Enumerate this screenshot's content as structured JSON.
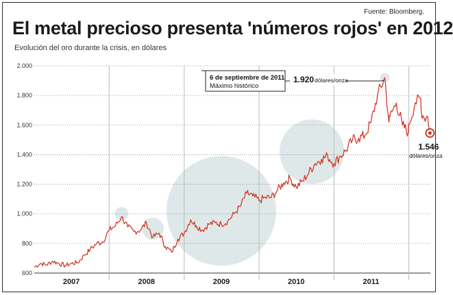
{
  "source": "Fuente: Bloomberg.",
  "title": "El metal precioso presenta 'números rojos' en 2012",
  "subtitle": "Evolución del oro durante la crisis, en dólares",
  "colors": {
    "line": "#d03a2c",
    "bubble": "#dfe8e8",
    "axis": "#333333",
    "grid": "#888888",
    "accent": "#d03a2c"
  },
  "chart_data": {
    "type": "line",
    "title": "El metal precioso presenta 'números rojos' en 2012",
    "subtitle": "Evolución del oro durante la crisis, en dólares",
    "xlabel": "",
    "ylabel": "",
    "x_range": [
      "2007-01-01",
      "2012-04-15"
    ],
    "ylim": [
      600,
      2000
    ],
    "y_ticks": [
      600,
      800,
      1000,
      1200,
      1400,
      1600,
      1800,
      2000
    ],
    "y_tick_labels": [
      "600",
      "800",
      "1.000",
      "1.200",
      "1.400",
      "1.600",
      "1.800",
      "2.000"
    ],
    "x_categories": [
      "2007",
      "2008",
      "2009",
      "2010",
      "2011"
    ],
    "grid": "horizontal-dotted",
    "series": [
      {
        "values": [
          [
            "2007-01-01",
            640
          ],
          [
            "2007-02-01",
            665
          ],
          [
            "2007-03-01",
            655
          ],
          [
            "2007-04-01",
            680
          ],
          [
            "2007-05-01",
            665
          ],
          [
            "2007-06-01",
            650
          ],
          [
            "2007-07-01",
            665
          ],
          [
            "2007-08-01",
            670
          ],
          [
            "2007-09-01",
            720
          ],
          [
            "2007-10-01",
            760
          ],
          [
            "2007-11-01",
            800
          ],
          [
            "2007-12-01",
            810
          ],
          [
            "2008-01-01",
            890
          ],
          [
            "2008-02-01",
            920
          ],
          [
            "2008-03-01",
            980
          ],
          [
            "2008-04-01",
            910
          ],
          [
            "2008-05-01",
            880
          ],
          [
            "2008-06-01",
            890
          ],
          [
            "2008-07-01",
            940
          ],
          [
            "2008-08-01",
            840
          ],
          [
            "2008-09-01",
            870
          ],
          [
            "2008-10-01",
            780
          ],
          [
            "2008-11-01",
            740
          ],
          [
            "2008-12-01",
            830
          ],
          [
            "2009-01-01",
            870
          ],
          [
            "2009-02-01",
            960
          ],
          [
            "2009-03-01",
            920
          ],
          [
            "2009-04-01",
            890
          ],
          [
            "2009-05-01",
            930
          ],
          [
            "2009-06-01",
            940
          ],
          [
            "2009-07-01",
            930
          ],
          [
            "2009-08-01",
            950
          ],
          [
            "2009-09-01",
            1000
          ],
          [
            "2009-10-01",
            1050
          ],
          [
            "2009-11-01",
            1140
          ],
          [
            "2009-12-01",
            1120
          ],
          [
            "2010-01-01",
            1090
          ],
          [
            "2010-02-01",
            1110
          ],
          [
            "2010-03-01",
            1110
          ],
          [
            "2010-04-01",
            1160
          ],
          [
            "2010-05-01",
            1210
          ],
          [
            "2010-06-01",
            1240
          ],
          [
            "2010-07-01",
            1180
          ],
          [
            "2010-08-01",
            1220
          ],
          [
            "2010-09-01",
            1280
          ],
          [
            "2010-10-01",
            1340
          ],
          [
            "2010-11-01",
            1370
          ],
          [
            "2010-12-01",
            1390
          ],
          [
            "2011-01-01",
            1340
          ],
          [
            "2011-02-01",
            1390
          ],
          [
            "2011-03-01",
            1430
          ],
          [
            "2011-04-01",
            1500
          ],
          [
            "2011-05-01",
            1510
          ],
          [
            "2011-06-01",
            1530
          ],
          [
            "2011-07-01",
            1620
          ],
          [
            "2011-08-01",
            1800
          ],
          [
            "2011-09-06",
            1920
          ],
          [
            "2011-09-26",
            1620
          ],
          [
            "2011-10-01",
            1660
          ],
          [
            "2011-11-01",
            1750
          ],
          [
            "2011-12-01",
            1600
          ],
          [
            "2011-12-29",
            1550
          ],
          [
            "2012-01-01",
            1600
          ],
          [
            "2012-02-01",
            1750
          ],
          [
            "2012-02-28",
            1780
          ],
          [
            "2012-03-01",
            1700
          ],
          [
            "2012-03-15",
            1650
          ],
          [
            "2012-04-01",
            1660
          ],
          [
            "2012-04-13",
            1546
          ]
        ]
      }
    ],
    "annotations": [
      {
        "x": "2011-09-06",
        "y": 1920,
        "text": "6 de septiembre de 2011",
        "subtext": "Máximo histórico",
        "value_label": "1.920",
        "unit": "dólares/onza"
      },
      {
        "x": "2012-04-13",
        "y": 1546,
        "value_label": "1.546",
        "unit": "dólares/onza"
      }
    ],
    "highlight_circles": [
      {
        "x": "2008-03-01",
        "y": 1000
      },
      {
        "x": "2008-08-01",
        "y": 900
      },
      {
        "x": "2009-07-01",
        "y": 1020
      },
      {
        "x": "2010-09-15",
        "y": 1420
      },
      {
        "x": "2011-09-06",
        "y": 1920
      }
    ]
  }
}
